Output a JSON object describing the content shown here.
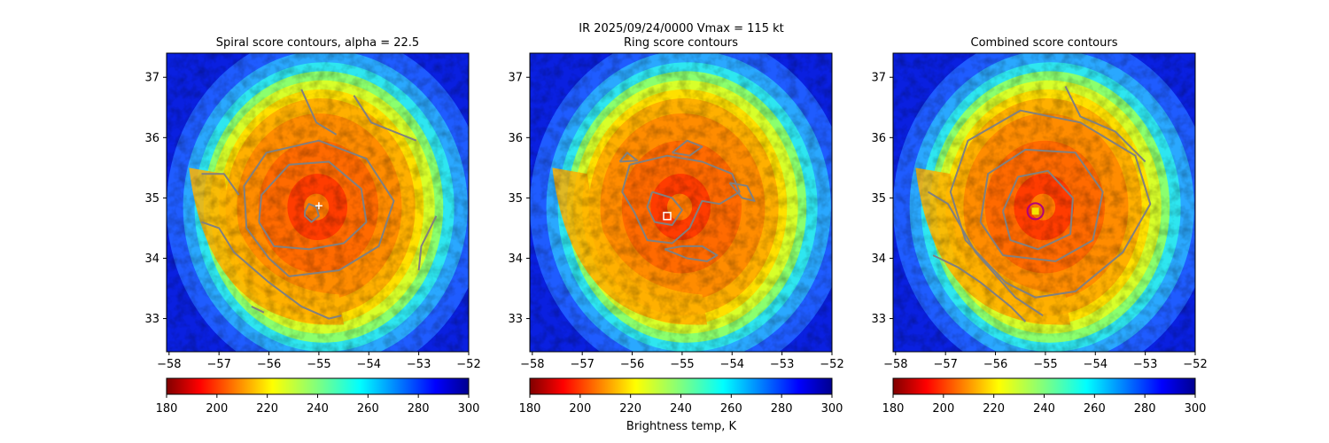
{
  "figure": {
    "suptitle_line1": "IR  2025/09/24/0000    Vmax = 115 kt",
    "colorbar_label": "Brightness temp, K"
  },
  "colors": {
    "contour": "#808080",
    "ring_marker": "#ffffff",
    "combined_circle": "#b0007a",
    "combined_square": "#f5e400"
  },
  "chart_data": [
    {
      "type": "heatmap",
      "title": "Spiral score contours, alpha = 22.5",
      "xlim": [
        -58.05,
        -52.0
      ],
      "ylim": [
        32.45,
        37.4
      ],
      "xticks": [
        -58,
        -57,
        -56,
        -55,
        -54,
        -53,
        -52
      ],
      "yticks": [
        33,
        34,
        35,
        36,
        37
      ],
      "colormap": "jet_r",
      "colorbar": {
        "min": 180,
        "max": 300,
        "ticks": [
          180,
          200,
          220,
          240,
          260,
          280,
          300
        ]
      },
      "center_estimate": {
        "lon": -55.1,
        "lat": 34.75
      },
      "marker": {
        "lon": -55.0,
        "lat": 34.87,
        "symbol": "+"
      },
      "contour_lines": [
        [
          [
            -55.28,
            34.78
          ],
          [
            -55.2,
            34.9
          ],
          [
            -55.05,
            34.85
          ],
          [
            -55.0,
            34.7
          ],
          [
            -55.15,
            34.6
          ],
          [
            -55.28,
            34.7
          ],
          [
            -55.28,
            34.78
          ]
        ],
        [
          [
            -56.2,
            34.6
          ],
          [
            -56.15,
            35.05
          ],
          [
            -55.6,
            35.55
          ],
          [
            -54.8,
            35.6
          ],
          [
            -54.15,
            35.15
          ],
          [
            -54.05,
            34.6
          ],
          [
            -54.5,
            34.25
          ],
          [
            -55.2,
            34.15
          ],
          [
            -55.9,
            34.2
          ],
          [
            -56.2,
            34.6
          ]
        ],
        [
          [
            -55.6,
            33.7
          ],
          [
            -56.0,
            34.0
          ],
          [
            -56.45,
            34.5
          ],
          [
            -56.5,
            35.2
          ],
          [
            -56.05,
            35.75
          ],
          [
            -55.0,
            35.95
          ],
          [
            -54.05,
            35.65
          ],
          [
            -53.5,
            34.95
          ],
          [
            -53.8,
            34.2
          ],
          [
            -54.6,
            33.8
          ],
          [
            -55.6,
            33.7
          ]
        ],
        [
          [
            -55.35,
            36.8
          ],
          [
            -55.05,
            36.25
          ],
          [
            -54.65,
            36.05
          ]
        ],
        [
          [
            -54.3,
            36.7
          ],
          [
            -53.95,
            36.25
          ],
          [
            -53.5,
            36.1
          ],
          [
            -53.05,
            35.95
          ]
        ],
        [
          [
            -57.35,
            35.4
          ],
          [
            -56.9,
            35.4
          ],
          [
            -56.6,
            35.05
          ]
        ],
        [
          [
            -57.35,
            34.6
          ],
          [
            -57.0,
            34.5
          ],
          [
            -56.7,
            34.1
          ],
          [
            -56.0,
            33.6
          ],
          [
            -55.35,
            33.2
          ],
          [
            -54.8,
            33.0
          ],
          [
            -54.55,
            33.05
          ]
        ],
        [
          [
            -56.35,
            33.2
          ],
          [
            -56.1,
            33.1
          ]
        ],
        [
          [
            -52.65,
            34.7
          ],
          [
            -52.95,
            34.2
          ],
          [
            -53.0,
            33.8
          ]
        ]
      ]
    },
    {
      "type": "heatmap",
      "title": "Ring score contours",
      "xlim": [
        -58.05,
        -52.0
      ],
      "ylim": [
        32.45,
        37.4
      ],
      "xticks": [
        -58,
        -57,
        -56,
        -55,
        -54,
        -53,
        -52
      ],
      "yticks": [
        33,
        34,
        35,
        36,
        37
      ],
      "colormap": "jet_r",
      "colorbar": {
        "min": 180,
        "max": 300,
        "ticks": [
          180,
          200,
          220,
          240,
          260,
          280,
          300
        ]
      },
      "center_estimate": {
        "lon": -55.1,
        "lat": 34.75
      },
      "marker": {
        "lon": -55.3,
        "lat": 34.7,
        "symbol": "square"
      },
      "contour_lines": [
        [
          [
            -56.05,
            35.55
          ],
          [
            -55.3,
            35.7
          ],
          [
            -54.6,
            35.6
          ],
          [
            -54.0,
            35.4
          ],
          [
            -53.85,
            35.1
          ],
          [
            -54.25,
            34.9
          ],
          [
            -54.6,
            34.95
          ],
          [
            -54.85,
            34.5
          ],
          [
            -55.2,
            34.25
          ],
          [
            -55.7,
            34.3
          ],
          [
            -55.95,
            34.75
          ],
          [
            -56.2,
            35.1
          ],
          [
            -56.05,
            35.55
          ]
        ],
        [
          [
            -55.6,
            35.1
          ],
          [
            -55.2,
            35.0
          ],
          [
            -55.0,
            34.8
          ],
          [
            -55.2,
            34.55
          ],
          [
            -55.55,
            34.6
          ],
          [
            -55.7,
            34.85
          ],
          [
            -55.6,
            35.1
          ]
        ],
        [
          [
            -55.35,
            34.15
          ],
          [
            -54.9,
            34.0
          ],
          [
            -54.5,
            33.95
          ],
          [
            -54.3,
            34.05
          ],
          [
            -54.6,
            34.2
          ],
          [
            -55.0,
            34.2
          ],
          [
            -55.35,
            34.15
          ]
        ],
        [
          [
            -55.2,
            35.75
          ],
          [
            -54.9,
            35.95
          ],
          [
            -54.6,
            35.85
          ],
          [
            -54.85,
            35.7
          ],
          [
            -55.2,
            35.75
          ]
        ],
        [
          [
            -54.05,
            35.25
          ],
          [
            -53.8,
            35.0
          ],
          [
            -53.55,
            34.95
          ],
          [
            -53.7,
            35.2
          ],
          [
            -54.05,
            35.25
          ]
        ],
        [
          [
            -56.25,
            35.6
          ],
          [
            -56.1,
            35.75
          ],
          [
            -55.9,
            35.62
          ],
          [
            -56.25,
            35.6
          ]
        ]
      ]
    },
    {
      "type": "heatmap",
      "title": "Combined score contours",
      "xlim": [
        -58.05,
        -52.0
      ],
      "ylim": [
        32.45,
        37.4
      ],
      "xticks": [
        -58,
        -57,
        -56,
        -55,
        -54,
        -53,
        -52
      ],
      "yticks": [
        33,
        34,
        35,
        36,
        37
      ],
      "colormap": "jet_r",
      "colorbar": {
        "min": 180,
        "max": 300,
        "ticks": [
          180,
          200,
          220,
          240,
          260,
          280,
          300
        ]
      },
      "center_estimate": {
        "lon": -55.1,
        "lat": 34.75
      },
      "marker": {
        "lon": -55.2,
        "lat": 34.78,
        "symbol": "circle+square"
      },
      "contour_lines": [
        [
          [
            -55.85,
            34.78
          ],
          [
            -55.55,
            35.35
          ],
          [
            -54.95,
            35.45
          ],
          [
            -54.45,
            35.0
          ],
          [
            -54.5,
            34.4
          ],
          [
            -55.15,
            34.15
          ],
          [
            -55.7,
            34.3
          ],
          [
            -55.85,
            34.78
          ]
        ],
        [
          [
            -56.3,
            34.6
          ],
          [
            -56.15,
            35.4
          ],
          [
            -55.4,
            35.8
          ],
          [
            -54.4,
            35.75
          ],
          [
            -53.85,
            35.1
          ],
          [
            -54.05,
            34.3
          ],
          [
            -54.8,
            33.95
          ],
          [
            -55.85,
            34.05
          ],
          [
            -56.3,
            34.6
          ]
        ],
        [
          [
            -55.8,
            33.6
          ],
          [
            -56.6,
            34.3
          ],
          [
            -56.9,
            35.1
          ],
          [
            -56.55,
            35.95
          ],
          [
            -55.5,
            36.45
          ],
          [
            -54.3,
            36.25
          ],
          [
            -53.2,
            35.7
          ],
          [
            -52.9,
            34.9
          ],
          [
            -53.45,
            34.1
          ],
          [
            -54.4,
            33.45
          ],
          [
            -55.2,
            33.35
          ],
          [
            -55.8,
            33.6
          ]
        ],
        [
          [
            -54.6,
            36.85
          ],
          [
            -54.3,
            36.35
          ],
          [
            -53.6,
            36.1
          ],
          [
            -53.0,
            35.6
          ]
        ],
        [
          [
            -57.35,
            35.1
          ],
          [
            -56.95,
            34.9
          ],
          [
            -56.4,
            34.1
          ],
          [
            -55.6,
            33.35
          ],
          [
            -55.05,
            33.05
          ]
        ],
        [
          [
            -57.25,
            34.05
          ],
          [
            -56.75,
            33.85
          ],
          [
            -56.3,
            33.6
          ],
          [
            -55.7,
            33.2
          ],
          [
            -55.4,
            32.95
          ]
        ]
      ]
    }
  ]
}
